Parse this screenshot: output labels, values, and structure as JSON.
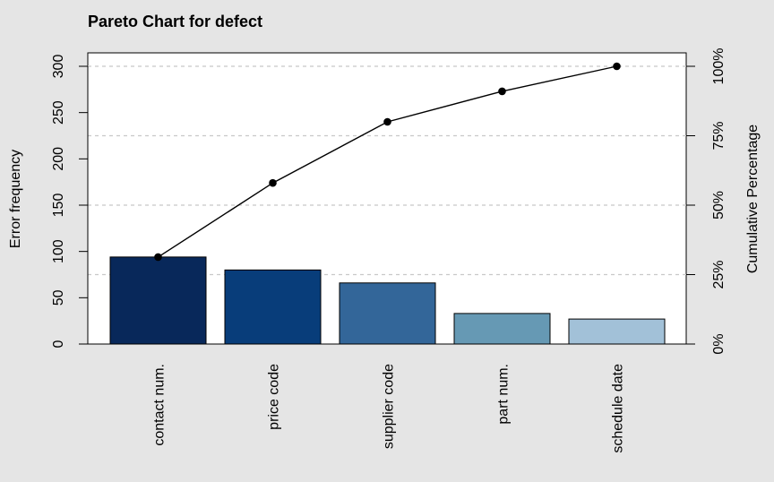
{
  "chart_data": {
    "type": "bar",
    "title": "Pareto Chart for defect",
    "categories": [
      "contact num.",
      "price code",
      "supplier code",
      "part num.",
      "schedule date"
    ],
    "values": [
      94,
      80,
      66,
      33,
      27
    ],
    "cumulative_percent": [
      31.3,
      58.0,
      80.0,
      91.0,
      100.0
    ],
    "ylabel": "Error frequency",
    "ylabel_right": "Cumulative Percentage",
    "ylim": [
      0,
      300
    ],
    "yticks": [
      0,
      50,
      100,
      150,
      200,
      250,
      300
    ],
    "yticks_right": [
      "0%",
      "25%",
      "50%",
      "75%",
      "100%"
    ],
    "grid": "horizontal dashed at 25% steps",
    "bar_colors": [
      "#08285a",
      "#083d7a",
      "#336699",
      "#6699b4",
      "#a2c1d8"
    ],
    "line_color": "#000000"
  }
}
